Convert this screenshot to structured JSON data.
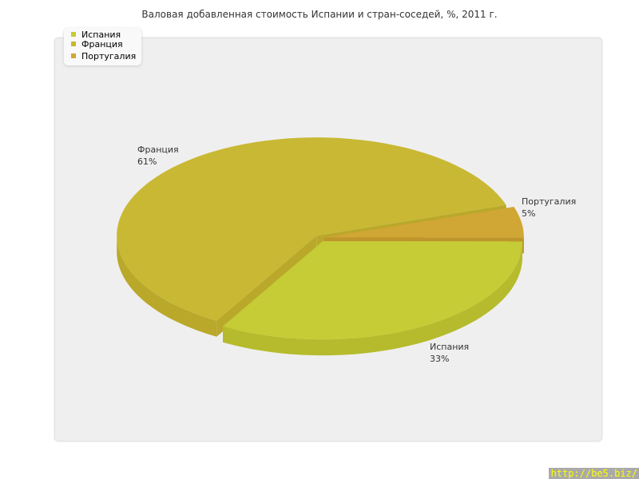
{
  "chart_data": {
    "type": "pie",
    "title": "Валовая добавленная стоимость Испании и стран-соседей, %, 2011 г.",
    "slices": [
      {
        "name": "Испания",
        "value": 33,
        "label": "33%",
        "color": "#c5cc35",
        "side": "#b5bb2c"
      },
      {
        "name": "Франция",
        "value": 61,
        "label": "61%",
        "color": "#c9b833",
        "side": "#b9a82a"
      },
      {
        "name": "Португалия",
        "value": 5,
        "label": "5%",
        "color": "#d0a634",
        "side": "#bf962b"
      }
    ],
    "legend": "top-left",
    "style": "3d-exploded"
  },
  "source": "http://be5.biz/"
}
